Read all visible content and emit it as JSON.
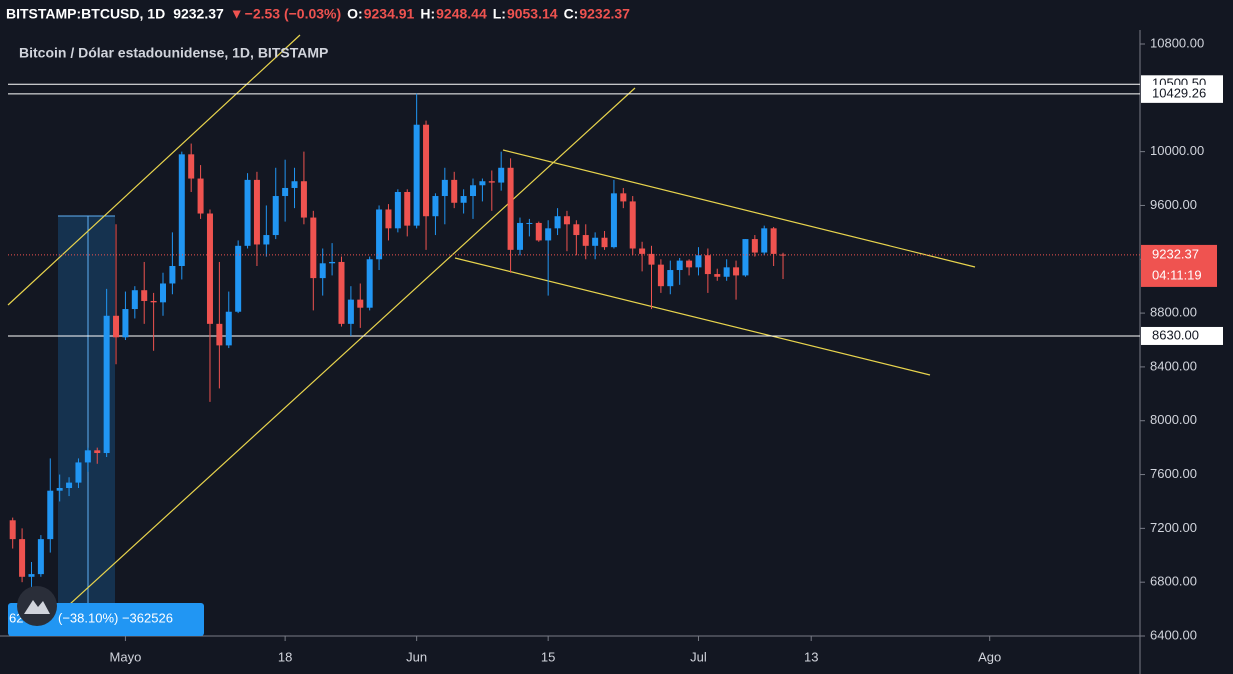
{
  "header": {
    "symbol": "BITSTAMP:BTCUSD, 1D",
    "last": "9232.37",
    "arrow": "▼",
    "change": "−2.53 (−0.03%)",
    "o_label": "O:",
    "o": "9234.91",
    "h_label": "H:",
    "h": "9248.44",
    "l_label": "L:",
    "l": "9053.14",
    "c_label": "C:",
    "c": "9232.37"
  },
  "chart_data": {
    "type": "candlestick",
    "title": "Bitcoin / Dólar estadounidense, 1D, BITSTAMP",
    "x": [
      -12,
      -11,
      -10,
      -9,
      -8,
      -7,
      -6,
      -5,
      -4,
      -3,
      -2,
      -1,
      0,
      1,
      2,
      3,
      4,
      5,
      6,
      7,
      8,
      9,
      10,
      11,
      12,
      13,
      14,
      15,
      16,
      17,
      18,
      19,
      20,
      21,
      22,
      23,
      24,
      25,
      26,
      27,
      28,
      29,
      30,
      31,
      32,
      33,
      34,
      35,
      36,
      37,
      38,
      39,
      40,
      41,
      42,
      43,
      44,
      45,
      46,
      47,
      48,
      49,
      50,
      51,
      52,
      53,
      54,
      55,
      56,
      57,
      58,
      59,
      60,
      61,
      62,
      63,
      64,
      65,
      66,
      67,
      68,
      69,
      70
    ],
    "open": [
      7260,
      7120,
      6840,
      6860,
      7120,
      7480,
      7500,
      7540,
      7690,
      7780,
      7760,
      8780,
      8620,
      8830,
      8970,
      8890,
      8880,
      9020,
      9150,
      9980,
      9800,
      9540,
      8720,
      8560,
      8810,
      9300,
      9790,
      9310,
      9380,
      9670,
      9730,
      9780,
      9510,
      9060,
      9170,
      9180,
      8720,
      8900,
      8840,
      9200,
      9570,
      9430,
      9700,
      9450,
      10200,
      9520,
      9670,
      9790,
      9620,
      9670,
      9750,
      9780,
      9770,
      9880,
      9270,
      9470,
      9470,
      9340,
      9430,
      9520,
      9460,
      9380,
      9300,
      9360,
      9290,
      9690,
      9630,
      9280,
      9240,
      9160,
      9000,
      9120,
      9190,
      9140,
      9230,
      9090,
      9070,
      9140,
      9080,
      9350,
      9250,
      9430,
      9234.91
    ],
    "high": [
      7280,
      7200,
      6950,
      7150,
      7720,
      7600,
      7580,
      7720,
      7800,
      7800,
      8980,
      9460,
      8960,
      9000,
      9180,
      8950,
      9100,
      9400,
      10000,
      10060,
      9900,
      9570,
      9180,
      8960,
      9340,
      9840,
      9850,
      9600,
      9880,
      9940,
      9880,
      10000,
      9560,
      9280,
      9320,
      9220,
      9000,
      9020,
      9220,
      9600,
      9610,
      9720,
      9720,
      10430,
      10230,
      9690,
      9880,
      9850,
      9720,
      9800,
      9800,
      9860,
      10000,
      9950,
      9510,
      9500,
      9480,
      9490,
      9580,
      9560,
      9490,
      9460,
      9400,
      9410,
      9790,
      9730,
      9670,
      9330,
      9300,
      9200,
      9190,
      9210,
      9200,
      9290,
      9280,
      9130,
      9200,
      9190,
      9350,
      9380,
      9450,
      9440,
      9248.44
    ],
    "low": [
      7050,
      6800,
      6760,
      6840,
      7020,
      7400,
      7440,
      7500,
      7620,
      7680,
      7730,
      8420,
      8600,
      8760,
      8720,
      8520,
      8780,
      8940,
      9050,
      9700,
      9500,
      8140,
      8240,
      8540,
      8800,
      9280,
      9150,
      9220,
      9350,
      9480,
      9580,
      9460,
      8820,
      8930,
      9080,
      8700,
      8630,
      8690,
      8820,
      9120,
      9340,
      9400,
      9370,
      9430,
      9270,
      9380,
      9460,
      9580,
      9540,
      9500,
      9630,
      9560,
      9710,
      9100,
      9230,
      9370,
      9330,
      8930,
      9380,
      9260,
      9230,
      9200,
      9200,
      9270,
      9280,
      9580,
      9230,
      9110,
      8830,
      8950,
      8940,
      9010,
      9080,
      9080,
      8950,
      9040,
      9040,
      8900,
      9070,
      9220,
      9230,
      9150,
      9053.14
    ],
    "close": [
      7120,
      6840,
      6860,
      7120,
      7480,
      7500,
      7540,
      7690,
      7780,
      7760,
      8780,
      8620,
      8830,
      8970,
      8890,
      8880,
      9020,
      9150,
      9980,
      9800,
      9540,
      8720,
      8560,
      8810,
      9300,
      9790,
      9310,
      9380,
      9670,
      9730,
      9780,
      9510,
      9060,
      9170,
      9180,
      8720,
      8900,
      8840,
      9200,
      9570,
      9430,
      9700,
      9450,
      10200,
      9520,
      9670,
      9790,
      9620,
      9670,
      9750,
      9780,
      9770,
      9880,
      9270,
      9470,
      9470,
      9340,
      9430,
      9520,
      9460,
      9380,
      9300,
      9360,
      9290,
      9690,
      9630,
      9280,
      9240,
      9160,
      9000,
      9120,
      9190,
      9140,
      9230,
      9090,
      9070,
      9140,
      9080,
      9350,
      9250,
      9430,
      9240,
      9232.37
    ],
    "up_color": "#2196f3",
    "down_color": "#ef5350",
    "xlim": [
      -12.5,
      108
    ],
    "ylim": [
      6400,
      10904
    ],
    "xticks": [
      {
        "value": 0,
        "label": "Mayo"
      },
      {
        "value": 17,
        "label": "18"
      },
      {
        "value": 31,
        "label": "Jun"
      },
      {
        "value": 45,
        "label": "15"
      },
      {
        "value": 61,
        "label": "Jul"
      },
      {
        "value": 73,
        "label": "13"
      },
      {
        "value": 92,
        "label": "Ago"
      }
    ],
    "yticks": [
      {
        "value": 6400,
        "label": "6400.00"
      },
      {
        "value": 6800,
        "label": "6800.00"
      },
      {
        "value": 7200,
        "label": "7200.00"
      },
      {
        "value": 7600,
        "label": "7600.00"
      },
      {
        "value": 8000,
        "label": "8000.00"
      },
      {
        "value": 8400,
        "label": "8400.00"
      },
      {
        "value": 8800,
        "label": "8800.00"
      },
      {
        "value": 9200,
        "label": "9200.00"
      },
      {
        "value": 9600,
        "label": "9600.00"
      },
      {
        "value": 10000,
        "label": "10000.00"
      },
      {
        "value": 10800,
        "label": "10800.00"
      }
    ],
    "levels": [
      {
        "value": 10500.5,
        "label": "10500.50"
      },
      {
        "value": 10429.26,
        "label": "10429.26"
      },
      {
        "value": 8630,
        "label": "8630.00"
      }
    ],
    "countdown": "04:11:19",
    "measure": {
      "start": "62",
      "text": "(−38.10%) −362526"
    }
  }
}
